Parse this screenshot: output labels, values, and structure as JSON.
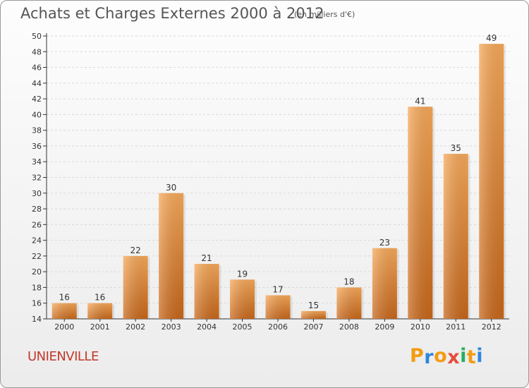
{
  "header": {
    "title": "Achats et Charges Externes 2000 à 2012",
    "subtitle": "(en milliers d'€)"
  },
  "footer": {
    "town": "UNIENVILLE",
    "logo_letters": [
      "P",
      "r",
      "o",
      "x",
      "i",
      "t",
      "i"
    ],
    "logo_colors": [
      "#f39c12",
      "#2e86de",
      "#f39c12",
      "#e74c3c",
      "#27ae60",
      "#f39c12",
      "#2e86de"
    ]
  },
  "colors": {
    "bar_light": "#f7a959",
    "bar_dark": "#c8671a",
    "grid": "#d9d9d9"
  },
  "chart_data": {
    "type": "bar",
    "title": "Achats et Charges Externes 2000 à 2012",
    "subtitle": "(en milliers d'€)",
    "categories": [
      "2000",
      "2001",
      "2002",
      "2003",
      "2004",
      "2005",
      "2006",
      "2007",
      "2008",
      "2009",
      "2010",
      "2011",
      "2012"
    ],
    "values": [
      16,
      16,
      22,
      30,
      21,
      19,
      17,
      15,
      18,
      23,
      41,
      35,
      49
    ],
    "ylim": [
      14,
      50
    ],
    "yticks": [
      14,
      16,
      18,
      20,
      22,
      24,
      26,
      28,
      30,
      32,
      34,
      36,
      38,
      40,
      42,
      44,
      46,
      48,
      50
    ],
    "grid": true,
    "xlabel": "",
    "ylabel": ""
  }
}
